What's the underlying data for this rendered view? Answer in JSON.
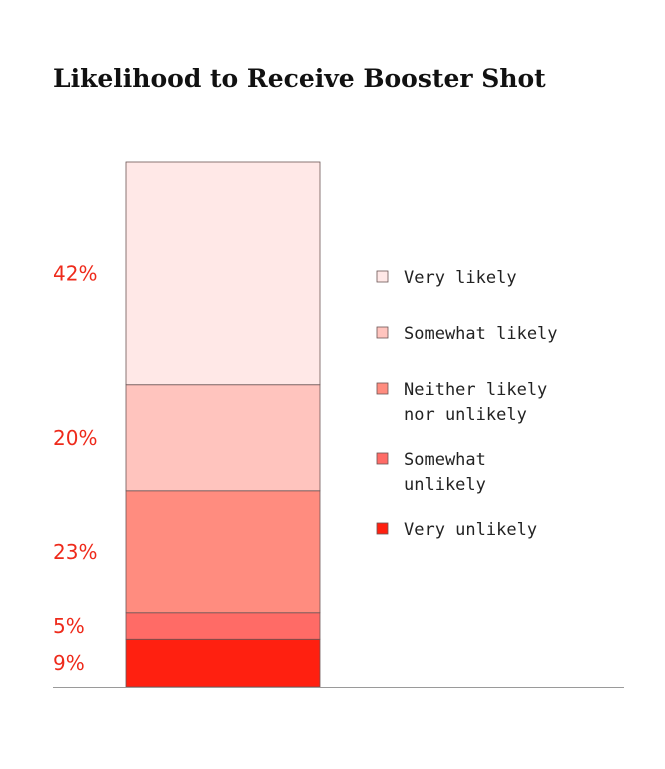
{
  "chart_data": {
    "type": "bar",
    "stacked": true,
    "title": "Likelihood to Receive Booster Shot",
    "categories": [
      ""
    ],
    "series": [
      {
        "name": "Very unlikely",
        "values": [
          9
        ],
        "label": "9%",
        "legend_lines": [
          "Very unlikely"
        ],
        "color": "#ff2010"
      },
      {
        "name": "Somewhat unlikely",
        "values": [
          5
        ],
        "label": "5%",
        "legend_lines": [
          "Somewhat",
          "unlikely"
        ],
        "color": "#ff6b66"
      },
      {
        "name": "Neither likely nor unlikely",
        "values": [
          23
        ],
        "label": "23%",
        "legend_lines": [
          "Neither likely",
          "nor unlikely"
        ],
        "color": "#ff8c7f"
      },
      {
        "name": "Somewhat likely",
        "values": [
          20
        ],
        "label": "20%",
        "legend_lines": [
          "Somewhat likely"
        ],
        "color": "#ffc4be"
      },
      {
        "name": "Very likely",
        "values": [
          42
        ],
        "label": "42%",
        "legend_lines": [
          "Very likely"
        ],
        "color": "#ffe8e7"
      }
    ],
    "legend_order": [
      "Very likely",
      "Somewhat likely",
      "Neither likely nor unlikely",
      "Somewhat unlikely",
      "Very unlikely"
    ],
    "legend_position": "right",
    "grid": false,
    "xlabel": "",
    "ylabel": ""
  }
}
